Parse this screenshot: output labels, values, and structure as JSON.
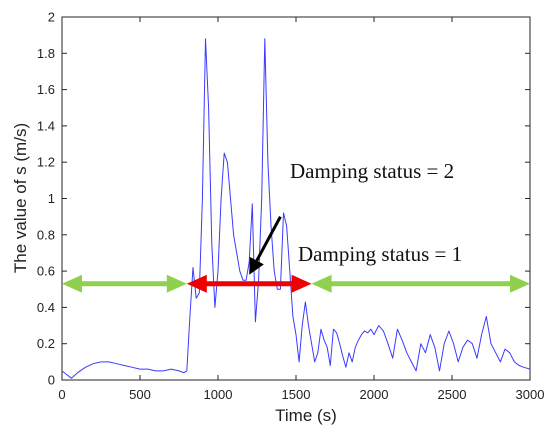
{
  "chart_data": {
    "type": "line",
    "xlabel": "Time (s)",
    "ylabel": "The value of s (m/s)",
    "xlim": [
      0,
      3000
    ],
    "ylim": [
      0,
      2
    ],
    "x_ticks": [
      0,
      500,
      1000,
      1500,
      2000,
      2500,
      3000
    ],
    "y_ticks": [
      0,
      0.2,
      0.4,
      0.6,
      0.8,
      1,
      1.2,
      1.4,
      1.6,
      1.8,
      2
    ],
    "x_tick_labels": [
      "0",
      "500",
      "1000",
      "1500",
      "2000",
      "2500",
      "3000"
    ],
    "y_tick_labels": [
      "0",
      "0.2",
      "0.4",
      "0.6",
      "0.8",
      "1",
      "1.2",
      "1.4",
      "1.6",
      "1.8",
      "2"
    ],
    "grid": false,
    "line_color": "#3b3bff",
    "series": [
      {
        "x": [
          0,
          30,
          60,
          100,
          150,
          200,
          250,
          300,
          350,
          400,
          450,
          500,
          550,
          600,
          650,
          700,
          750,
          780,
          800,
          820,
          840,
          860,
          880,
          900,
          920,
          940,
          960,
          980,
          1000,
          1020,
          1040,
          1060,
          1080,
          1100,
          1120,
          1140,
          1160,
          1180,
          1200,
          1220,
          1240,
          1260,
          1280,
          1300,
          1320,
          1340,
          1360,
          1380,
          1400,
          1420,
          1440,
          1460,
          1480,
          1500,
          1520,
          1540,
          1560,
          1580,
          1600,
          1620,
          1640,
          1660,
          1680,
          1700,
          1720,
          1740,
          1760,
          1780,
          1800,
          1820,
          1840,
          1860,
          1880,
          1900,
          1920,
          1940,
          1960,
          1980,
          2000,
          2030,
          2060,
          2090,
          2120,
          2150,
          2180,
          2210,
          2240,
          2270,
          2300,
          2330,
          2360,
          2390,
          2420,
          2450,
          2480,
          2510,
          2540,
          2570,
          2600,
          2630,
          2660,
          2690,
          2720,
          2750,
          2780,
          2810,
          2840,
          2870,
          2900,
          2930,
          2960,
          3000
        ],
        "y": [
          0.05,
          0.03,
          0.01,
          0.04,
          0.07,
          0.09,
          0.1,
          0.1,
          0.09,
          0.08,
          0.07,
          0.06,
          0.06,
          0.05,
          0.05,
          0.06,
          0.05,
          0.04,
          0.05,
          0.35,
          0.62,
          0.45,
          0.48,
          1.0,
          1.88,
          1.5,
          0.75,
          0.4,
          0.6,
          1.0,
          1.25,
          1.2,
          1.0,
          0.8,
          0.7,
          0.6,
          0.55,
          0.55,
          0.65,
          0.97,
          0.32,
          0.55,
          1.0,
          1.88,
          1.2,
          0.85,
          0.6,
          0.5,
          0.5,
          0.92,
          0.85,
          0.6,
          0.35,
          0.25,
          0.1,
          0.3,
          0.43,
          0.3,
          0.2,
          0.1,
          0.15,
          0.28,
          0.22,
          0.18,
          0.08,
          0.28,
          0.26,
          0.2,
          0.13,
          0.07,
          0.15,
          0.1,
          0.18,
          0.22,
          0.25,
          0.27,
          0.26,
          0.28,
          0.25,
          0.3,
          0.27,
          0.2,
          0.12,
          0.28,
          0.22,
          0.15,
          0.1,
          0.05,
          0.2,
          0.15,
          0.25,
          0.18,
          0.05,
          0.2,
          0.27,
          0.2,
          0.1,
          0.18,
          0.22,
          0.2,
          0.12,
          0.25,
          0.35,
          0.2,
          0.15,
          0.1,
          0.17,
          0.15,
          0.1,
          0.08,
          0.07,
          0.06
        ]
      }
    ],
    "annotations": {
      "label_status_2": "Damping status = 2",
      "label_status_1": "Damping status = 1",
      "left_green_span": [
        0,
        800
      ],
      "red_span": [
        800,
        1600
      ],
      "right_green_span": [
        1600,
        3000
      ],
      "span_y": 0.53,
      "green_color": "#8fd14f",
      "red_color": "#ee0000",
      "black_arrow_tip": [
        1200,
        0.58
      ],
      "black_arrow_tail": [
        1400,
        0.9
      ]
    }
  }
}
